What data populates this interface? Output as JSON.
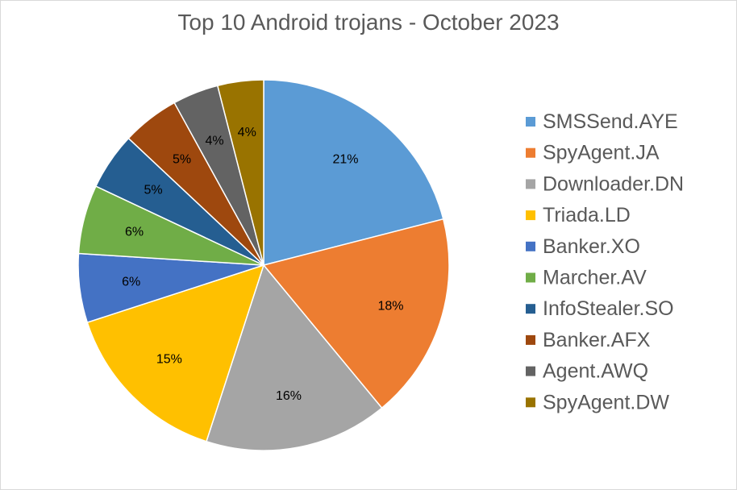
{
  "chart_data": {
    "type": "pie",
    "title": "Top 10 Android trojans - October 2023",
    "categories": [
      "SMSSend.AYE",
      "SpyAgent.JA",
      "Downloader.DN",
      "Triada.LD",
      "Banker.XO",
      "Marcher.AV",
      "InfoStealer.SO",
      "Banker.AFX",
      "Agent.AWQ",
      "SpyAgent.DW"
    ],
    "values": [
      21,
      18,
      16,
      15,
      6,
      6,
      5,
      5,
      4,
      4
    ],
    "labels": [
      "21%",
      "18%",
      "16%",
      "15%",
      "6%",
      "6%",
      "5%",
      "5%",
      "4%",
      "4%"
    ],
    "colors": [
      "#5b9bd5",
      "#ed7d31",
      "#a5a5a5",
      "#ffc000",
      "#4472c4",
      "#70ad47",
      "#255e91",
      "#9e480e",
      "#636363",
      "#997300"
    ],
    "legend_position": "right"
  }
}
